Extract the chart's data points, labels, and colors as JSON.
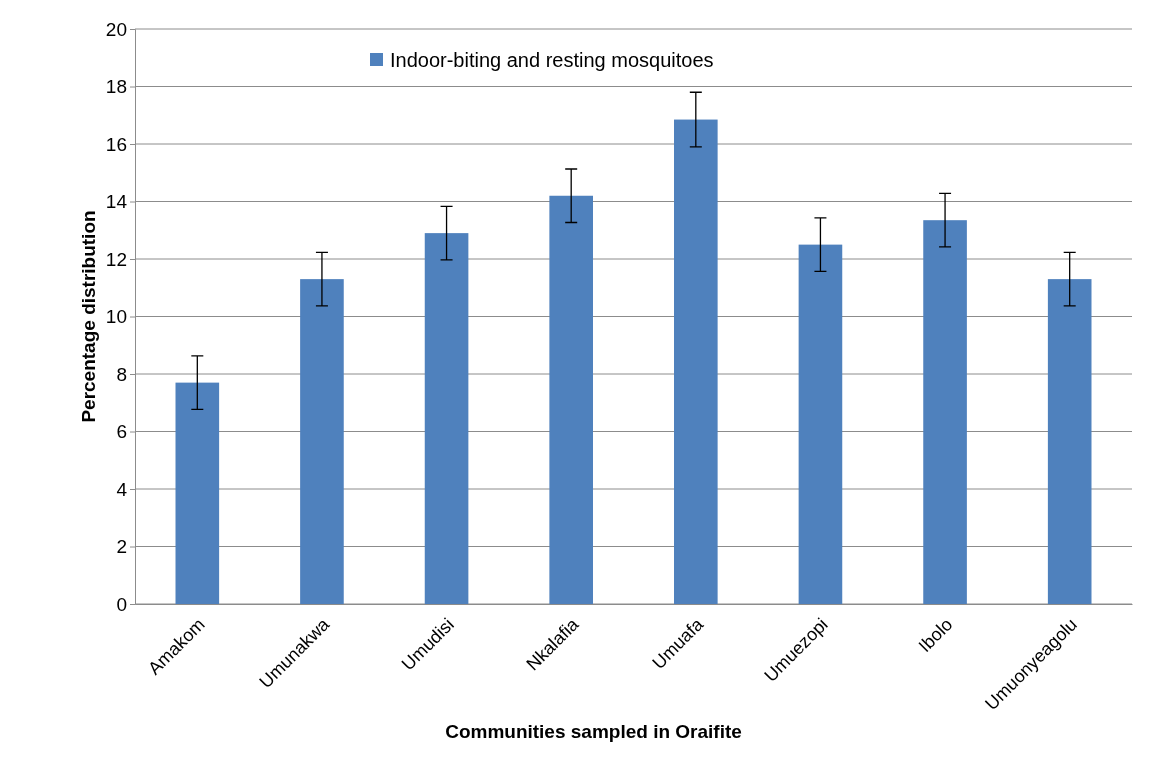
{
  "chart_data": {
    "type": "bar",
    "xlabel": "Communities sampled in Oraifite",
    "ylabel": "Percentage distribution",
    "categories": [
      "Amakom",
      "Umunakwa",
      "Umudisi",
      "Nkalafia",
      "Umuafa",
      "Umuezopi",
      "Ibolo",
      "Umuonyeagolu"
    ],
    "series": [
      {
        "name": "Indoor-biting and resting mosquitoes",
        "color": "#4f81bd",
        "values": [
          7.7,
          11.3,
          12.9,
          14.2,
          16.85,
          12.5,
          13.35,
          11.3
        ],
        "errors": [
          0.93,
          0.93,
          0.93,
          0.93,
          0.95,
          0.93,
          0.93,
          0.93
        ]
      }
    ],
    "ylim": [
      0,
      20
    ],
    "yticks": [
      0,
      2,
      4,
      6,
      8,
      10,
      12,
      14,
      16,
      18,
      20
    ],
    "grid": "y",
    "legend": "top"
  }
}
